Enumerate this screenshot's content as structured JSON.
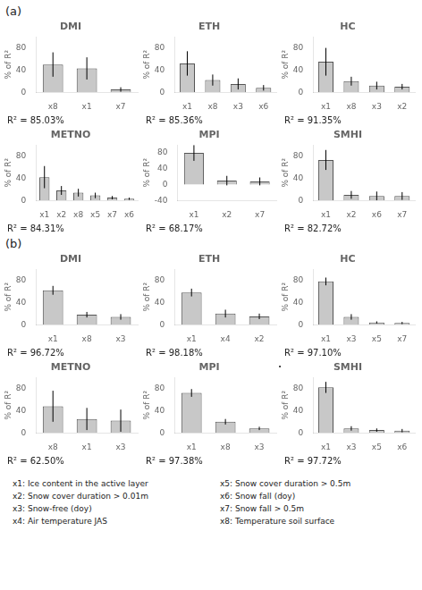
{
  "chart_data": [
    {
      "type": "bar",
      "panel": "(a)",
      "title": "DMI",
      "categories": [
        "x8",
        "x1",
        "x7"
      ],
      "values": [
        50,
        43,
        5
      ],
      "errors": [
        22,
        20,
        4
      ],
      "annotation": "R² = 85.03%",
      "color": "#c8c8c8",
      "ylabel": "% of R²",
      "ylim": [
        0,
        100
      ],
      "yticks": [
        0,
        40,
        80
      ],
      "grid": false
    },
    {
      "type": "bar",
      "panel": "(a)",
      "title": "ETH",
      "categories": [
        "x1",
        "x8",
        "x3",
        "x6"
      ],
      "values": [
        52,
        22,
        15,
        8
      ],
      "errors": [
        22,
        10,
        10,
        5
      ],
      "annotation": "R² = 85.36%",
      "color": "#c8c8c8",
      "ylabel": "% of R²",
      "ylim": [
        0,
        100
      ],
      "yticks": [
        0,
        40,
        80
      ],
      "grid": false
    },
    {
      "type": "bar",
      "panel": "(a)",
      "title": "HC",
      "categories": [
        "x1",
        "x8",
        "x3",
        "x2"
      ],
      "values": [
        55,
        20,
        12,
        10
      ],
      "errors": [
        25,
        8,
        7,
        5
      ],
      "annotation": "R² = 91.35%",
      "color": "#c8c8c8",
      "ylabel": "% of R²",
      "ylim": [
        0,
        100
      ],
      "yticks": [
        0,
        40,
        80
      ],
      "grid": false
    },
    {
      "type": "bar",
      "panel": "(a)",
      "title": "METNO",
      "categories": [
        "x1",
        "x2",
        "x8",
        "x5",
        "x7",
        "x6"
      ],
      "values": [
        42,
        18,
        14,
        9,
        5,
        3
      ],
      "errors": [
        20,
        8,
        7,
        5,
        3,
        2
      ],
      "annotation": "R² = 84.31%",
      "color": "#c8c8c8",
      "ylabel": "% of R²",
      "ylim": [
        0,
        100
      ],
      "yticks": [
        0,
        40,
        80
      ],
      "grid": false
    },
    {
      "type": "bar",
      "panel": "(a)",
      "title": "MPI",
      "categories": [
        "x1",
        "x2",
        "x7"
      ],
      "values": [
        80,
        10,
        8
      ],
      "errors": [
        20,
        12,
        10
      ],
      "annotation": "R² = 68.17%",
      "color": "#c8c8c8",
      "ylabel": "% of R²",
      "ylim": [
        -40,
        100
      ],
      "yticks": [
        -40,
        0,
        40,
        80
      ],
      "grid": false
    },
    {
      "type": "bar",
      "panel": "(a)",
      "title": "SMHI",
      "categories": [
        "x1",
        "x2",
        "x6",
        "x7"
      ],
      "values": [
        73,
        10,
        8,
        8
      ],
      "errors": [
        18,
        7,
        8,
        7
      ],
      "annotation": "R² = 82.72%",
      "color": "#c8c8c8",
      "ylabel": "% of R²",
      "ylim": [
        0,
        100
      ],
      "yticks": [
        0,
        40,
        80
      ],
      "grid": false
    },
    {
      "type": "bar",
      "panel": "(b)",
      "title": "DMI",
      "categories": [
        "x1",
        "x8",
        "x3"
      ],
      "values": [
        62,
        18,
        14
      ],
      "errors": [
        8,
        5,
        5
      ],
      "annotation": "R² = 96.72%",
      "color": "#c8c8c8",
      "ylabel": "% of R²",
      "ylim": [
        0,
        100
      ],
      "yticks": [
        0,
        40,
        80
      ],
      "grid": false
    },
    {
      "type": "bar",
      "panel": "(b)",
      "title": "ETH",
      "categories": [
        "x1",
        "x4",
        "x2"
      ],
      "values": [
        58,
        20,
        15
      ],
      "errors": [
        7,
        7,
        5
      ],
      "annotation": "R² = 98.18%",
      "color": "#c8c8c8",
      "ylabel": "% of R²",
      "ylim": [
        0,
        100
      ],
      "yticks": [
        0,
        40,
        80
      ],
      "grid": false
    },
    {
      "type": "bar",
      "panel": "(b)",
      "title": "HC",
      "categories": [
        "x1",
        "x3",
        "x5",
        "x7"
      ],
      "values": [
        78,
        14,
        4,
        3
      ],
      "errors": [
        7,
        5,
        2,
        2
      ],
      "annotation": "R² = 97.10%",
      "color": "#c8c8c8",
      "ylabel": "% of R²",
      "ylim": [
        0,
        100
      ],
      "yticks": [
        0,
        40,
        80
      ],
      "grid": false
    },
    {
      "type": "bar",
      "panel": "(b)",
      "title": "METNO",
      "categories": [
        "x8",
        "x1",
        "x3"
      ],
      "values": [
        48,
        25,
        22
      ],
      "errors": [
        28,
        20,
        20
      ],
      "annotation": "R² = 62.50%",
      "color": "#c8c8c8",
      "ylabel": "% of R²",
      "ylim": [
        0,
        100
      ],
      "yticks": [
        0,
        40,
        80
      ],
      "grid": false
    },
    {
      "type": "bar",
      "panel": "(b)",
      "title": "MPI",
      "categories": [
        "x1",
        "x8",
        "x3"
      ],
      "values": [
        72,
        20,
        8
      ],
      "errors": [
        7,
        5,
        3
      ],
      "annotation": "R² = 97.38%",
      "color": "#c8c8c8",
      "ylabel": "% of R²",
      "ylim": [
        0,
        100
      ],
      "yticks": [
        0,
        40,
        80
      ],
      "grid": false
    },
    {
      "type": "bar",
      "panel": "(b)",
      "title": "SMHI",
      "categories": [
        "x1",
        "x3",
        "x5",
        "x6"
      ],
      "values": [
        82,
        8,
        5,
        4
      ],
      "errors": [
        10,
        4,
        3,
        3
      ],
      "annotation": "R² = 97.72%",
      "color": "#c8c8c8",
      "ylabel": "% of R²",
      "ylim": [
        0,
        100
      ],
      "yticks": [
        0,
        40,
        80
      ],
      "grid": false
    }
  ],
  "separator": "·",
  "key": [
    "x1: Ice content in the active layer",
    "x2: Snow cover duration > 0.01m",
    "x3: Snow-free (doy)",
    "x4: Air temperature JAS",
    "x5: Snow cover duration > 0.5m",
    "x6: Snow fall (doy)",
    "x7: Snow fall > 0.5m",
    "x8: Temperature soil surface"
  ]
}
